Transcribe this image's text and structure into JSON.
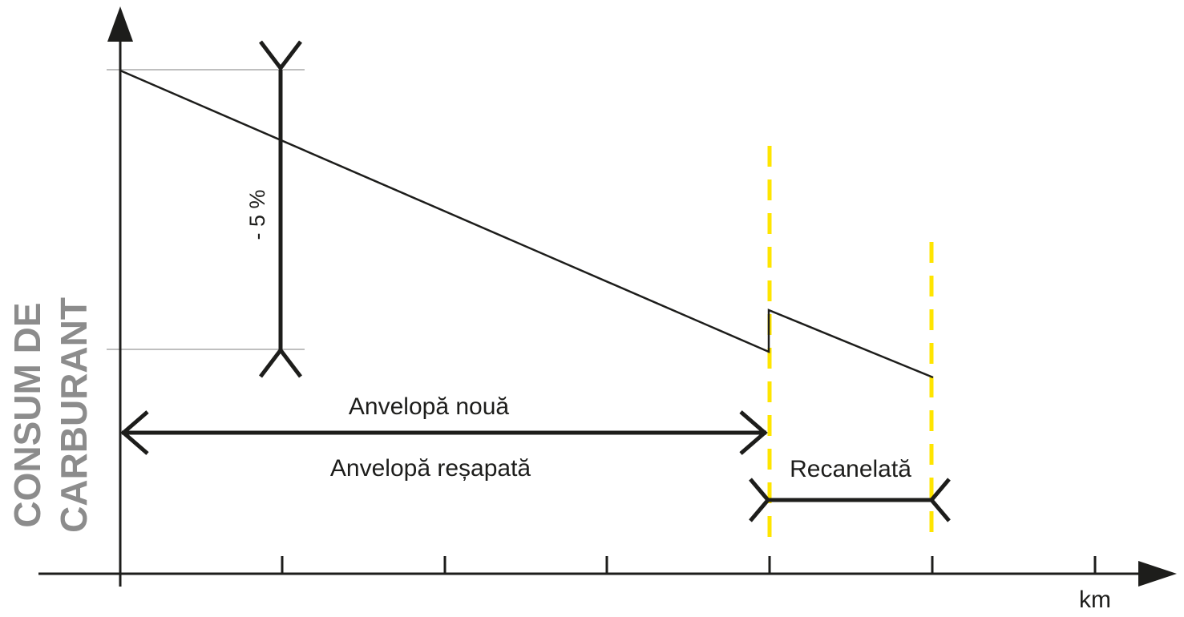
{
  "diagram": {
    "y_axis_label_line1": "CONSUM DE",
    "y_axis_label_line2": "CARBURANT",
    "x_axis_label": "km",
    "reduction_label": "- 5 %",
    "span_new_tire": "Anvelopă nouă",
    "span_retreaded_tire": "Anvelopă reșapată",
    "span_regrooved": "Recanelată"
  },
  "colors": {
    "axis": "#1d1d1b",
    "line": "#1d1d1b",
    "guide": "#aaaaaa",
    "dashed_marker": "#ffe500",
    "y_label": "#8c8c8c"
  }
}
